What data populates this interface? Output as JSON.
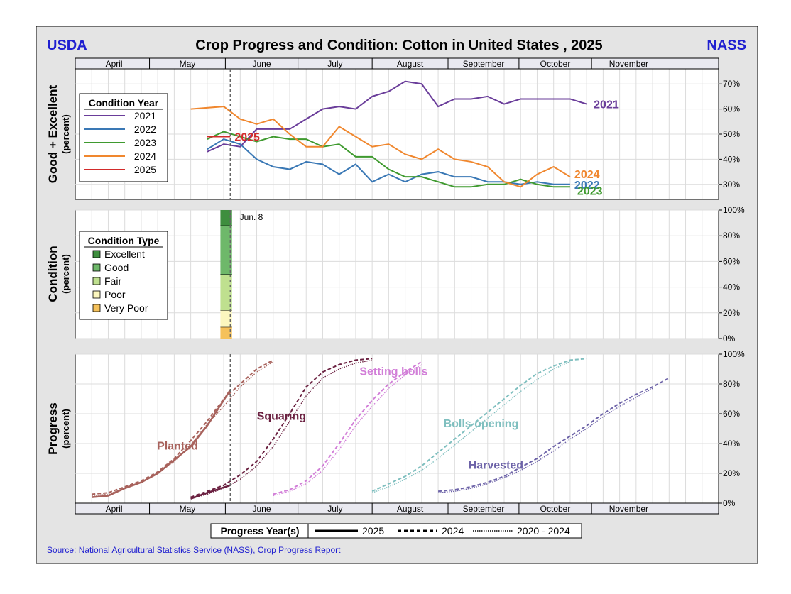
{
  "header": {
    "left_org": "USDA",
    "title": "Crop Progress and Condition: Cotton in United States , 2025",
    "right_org": "NASS"
  },
  "colors": {
    "frame_bg": "#e4e4e4",
    "org_blue": "#1f1fd0",
    "grid": "#dcdcdc",
    "y2021": "#6a3d9a",
    "y2022": "#3a78b5",
    "y2023": "#3f9a2f",
    "y2024": "#f0872e",
    "y2025": "#d22b2b",
    "excellent": "#3e8e3e",
    "good": "#6eb86a",
    "fair": "#bfe08f",
    "poor": "#fcf7bf",
    "very_poor": "#f5c15a",
    "planted": "#a8625c",
    "squaring": "#6b2141",
    "setting_bolls": "#d27fd8",
    "bolls_opening": "#7fbfbf",
    "harvested": "#6d63a8"
  },
  "source": "Source: National Agricultural Statistics Service (NASS), Crop Progress Report",
  "progress_legend": {
    "title": "Progress Year(s)",
    "items": [
      "2025",
      "2024",
      "2020 - 2024"
    ]
  },
  "chart_data": [
    {
      "id": "good_excellent",
      "type": "line",
      "ylabel": "Good + Excellent",
      "ysublabel": "(percent)",
      "ylim": [
        24,
        76
      ],
      "yticks": [
        30,
        40,
        50,
        60,
        70
      ],
      "ytick_labels": [
        "30%",
        "40%",
        "50%",
        "60%",
        "70%"
      ],
      "months": [
        "April",
        "May",
        "June",
        "July",
        "August",
        "September",
        "October",
        "November"
      ],
      "current_week_marker": 22.4,
      "legend": {
        "title": "Condition Year",
        "placement": "left",
        "items": [
          "2021",
          "2022",
          "2023",
          "2024",
          "2025"
        ]
      },
      "series": [
        {
          "name": "2021",
          "label": "2021",
          "color_key": "y2021",
          "x": [
            21,
            22,
            23,
            24,
            25,
            26,
            27,
            28,
            29,
            30,
            31,
            32,
            33,
            34,
            35,
            36,
            37,
            38,
            39,
            40,
            41,
            42,
            43,
            44
          ],
          "y": [
            43,
            46,
            45,
            52,
            52,
            52,
            56,
            60,
            61,
            60,
            65,
            67,
            71,
            70,
            61,
            64,
            64,
            65,
            62,
            64,
            64,
            64,
            64,
            62
          ]
        },
        {
          "name": "2022",
          "label": "2022",
          "color_key": "y2022",
          "x": [
            21,
            22,
            23,
            24,
            25,
            26,
            27,
            28,
            29,
            30,
            31,
            32,
            33,
            34,
            35,
            36,
            37,
            38,
            39,
            40,
            41,
            42,
            43
          ],
          "y": [
            44,
            48,
            46,
            40,
            37,
            36,
            39,
            38,
            34,
            38,
            31,
            34,
            31,
            34,
            35,
            33,
            33,
            31,
            31,
            30,
            31,
            30,
            30
          ]
        },
        {
          "name": "2023",
          "label": "2023",
          "color_key": "y2023",
          "x": [
            21,
            22,
            23,
            24,
            25,
            26,
            27,
            28,
            29,
            30,
            31,
            32,
            33,
            34,
            35,
            36,
            37,
            38,
            39,
            40,
            41,
            42,
            43
          ],
          "y": [
            48,
            51,
            49,
            47,
            49,
            48,
            48,
            45,
            46,
            41,
            41,
            36,
            33,
            33,
            31,
            29,
            29,
            30,
            30,
            32,
            30,
            29,
            29
          ]
        },
        {
          "name": "2024",
          "label": "2024",
          "color_key": "y2024",
          "x": [
            20,
            22,
            23,
            24,
            25,
            26,
            27,
            28,
            29,
            30,
            31,
            32,
            33,
            34,
            35,
            36,
            37,
            38,
            39,
            40,
            41,
            42,
            43
          ],
          "y": [
            60,
            61,
            56,
            54,
            56,
            50,
            45,
            45,
            53,
            49,
            45,
            46,
            42,
            40,
            44,
            40,
            39,
            37,
            31,
            29,
            34,
            37,
            33
          ]
        },
        {
          "name": "2025",
          "label": "2025",
          "color_key": "y2025",
          "x": [
            21,
            22.4
          ],
          "y": [
            49,
            49
          ]
        }
      ]
    },
    {
      "id": "condition",
      "type": "bar",
      "ylabel": "Condition",
      "ysublabel": "(percent)",
      "ylim": [
        0,
        100
      ],
      "yticks": [
        0,
        20,
        40,
        60,
        80,
        100
      ],
      "ytick_labels": [
        "0%",
        "20%",
        "40%",
        "60%",
        "80%",
        "100%"
      ],
      "date_label": "Jun. 8",
      "legend": {
        "title": "Condition Type",
        "placement": "left",
        "items": [
          "Excellent",
          "Good",
          "Fair",
          "Poor",
          "Very Poor"
        ]
      },
      "week_x": 22.4,
      "stack_order_bottom_to_top": [
        "Very Poor",
        "Poor",
        "Fair",
        "Good",
        "Excellent"
      ],
      "values": {
        "Very Poor": 9,
        "Poor": 13,
        "Fair": 28,
        "Good": 38,
        "Excellent": 12
      }
    },
    {
      "id": "progress",
      "type": "line",
      "ylabel": "Progress",
      "ysublabel": "(percent)",
      "ylim": [
        0,
        100
      ],
      "yticks": [
        0,
        20,
        40,
        60,
        80,
        100
      ],
      "ytick_labels": [
        "0%",
        "20%",
        "40%",
        "60%",
        "80%",
        "100%"
      ],
      "current_week_marker": 22.4,
      "stages": [
        {
          "name": "Planted",
          "color_key": "planted",
          "current": {
            "x": [
              14,
              15,
              16,
              17,
              18,
              19,
              20,
              21,
              22.4
            ],
            "y": [
              4,
              5,
              10,
              14,
              20,
              29,
              38,
              52,
              76
            ]
          },
          "prior": {
            "x": [
              14,
              15,
              16,
              17,
              18,
              19,
              20,
              21,
              22,
              23,
              24,
              25
            ],
            "y": [
              6,
              7,
              11,
              15,
              21,
              30,
              42,
              55,
              70,
              80,
              90,
              96
            ]
          },
          "avg": {
            "x": [
              14,
              15,
              16,
              17,
              18,
              19,
              20,
              21,
              22,
              23,
              24,
              25
            ],
            "y": [
              5,
              6,
              10,
              14,
              20,
              28,
              39,
              53,
              65,
              78,
              88,
              95
            ]
          }
        },
        {
          "name": "Squaring",
          "color_key": "squaring",
          "current": {
            "x": [
              20,
              21,
              22.4
            ],
            "y": [
              3,
              7,
              12
            ]
          },
          "prior": {
            "x": [
              20,
              21,
              22,
              23,
              24,
              25,
              26,
              27,
              28,
              29,
              30,
              31
            ],
            "y": [
              4,
              8,
              12,
              19,
              28,
              43,
              60,
              78,
              88,
              93,
              96,
              97
            ]
          },
          "avg": {
            "x": [
              20,
              21,
              22,
              23,
              24,
              25,
              26,
              27,
              28,
              29,
              30,
              31
            ],
            "y": [
              3,
              6,
              10,
              16,
              25,
              38,
              55,
              72,
              84,
              90,
              94,
              96
            ]
          }
        },
        {
          "name": "Setting bolls",
          "color_key": "setting_bolls",
          "prior": {
            "x": [
              25,
              26,
              27,
              28,
              29,
              30,
              31,
              32,
              33,
              34
            ],
            "y": [
              6,
              9,
              15,
              25,
              40,
              56,
              69,
              80,
              88,
              95
            ]
          },
          "avg": {
            "x": [
              25,
              26,
              27,
              28,
              29,
              30,
              31,
              32,
              33,
              34
            ],
            "y": [
              5,
              8,
              13,
              22,
              36,
              52,
              65,
              77,
              86,
              93
            ]
          }
        },
        {
          "name": "Bolls opening",
          "color_key": "bolls_opening",
          "prior": {
            "x": [
              31,
              32,
              33,
              34,
              35,
              36,
              37,
              38,
              39,
              40,
              41,
              42,
              43,
              44
            ],
            "y": [
              8,
              13,
              18,
              25,
              34,
              43,
              52,
              61,
              70,
              79,
              87,
              92,
              96,
              97
            ]
          },
          "avg": {
            "x": [
              31,
              32,
              33,
              34,
              35,
              36,
              37,
              38,
              39,
              40,
              41,
              42,
              43
            ],
            "y": [
              7,
              11,
              16,
              22,
              30,
              39,
              48,
              57,
              66,
              75,
              83,
              90,
              95
            ]
          }
        },
        {
          "name": "Harvested",
          "color_key": "harvested",
          "prior": {
            "x": [
              35,
              36,
              37,
              38,
              39,
              40,
              41,
              42,
              43,
              44,
              45,
              46,
              47,
              48,
              49
            ],
            "y": [
              8,
              9,
              11,
              14,
              18,
              24,
              30,
              38,
              45,
              52,
              60,
              67,
              73,
              78,
              84
            ]
          },
          "avg": {
            "x": [
              35,
              36,
              37,
              38,
              39,
              40,
              41,
              42,
              43,
              44,
              45,
              46,
              47,
              48
            ],
            "y": [
              7,
              8,
              10,
              13,
              17,
              22,
              28,
              35,
              43,
              50,
              58,
              65,
              71,
              77
            ]
          }
        }
      ]
    }
  ]
}
